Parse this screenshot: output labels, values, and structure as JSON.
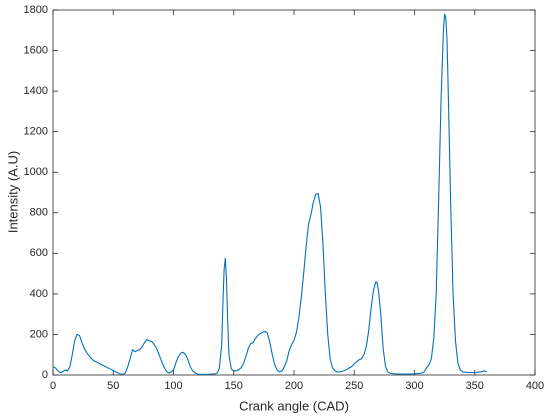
{
  "chart_data": {
    "type": "line",
    "xlabel": "Crank angle (CAD)",
    "ylabel": "Intensity (A.U)",
    "color": "#0072bd",
    "xlim": [
      0,
      400
    ],
    "xticks": [
      0,
      50,
      100,
      150,
      200,
      250,
      300,
      350,
      400
    ],
    "ylim": [
      0,
      1800
    ],
    "yticks": [
      0,
      200,
      400,
      600,
      800,
      1000,
      1200,
      1400,
      1600,
      1800
    ],
    "x": [
      0,
      2,
      4,
      6,
      8,
      10,
      12,
      14,
      16,
      18,
      20,
      22,
      24,
      26,
      28,
      30,
      32,
      34,
      36,
      38,
      40,
      42,
      44,
      46,
      48,
      50,
      52,
      54,
      56,
      58,
      60,
      62,
      64,
      66,
      68,
      70,
      72,
      74,
      76,
      78,
      80,
      82,
      84,
      86,
      88,
      90,
      92,
      94,
      96,
      98,
      100,
      102,
      104,
      106,
      108,
      110,
      112,
      114,
      116,
      118,
      120,
      122,
      124,
      126,
      128,
      130,
      132,
      134,
      136,
      138,
      140,
      141,
      142,
      143,
      144,
      145,
      146,
      148,
      150,
      152,
      154,
      156,
      158,
      160,
      162,
      164,
      166,
      168,
      170,
      172,
      174,
      176,
      178,
      180,
      182,
      184,
      186,
      188,
      190,
      192,
      194,
      196,
      198,
      200,
      202,
      204,
      206,
      208,
      210,
      212,
      214,
      216,
      218,
      220,
      222,
      224,
      226,
      228,
      230,
      232,
      234,
      236,
      238,
      240,
      242,
      244,
      246,
      248,
      250,
      252,
      254,
      256,
      258,
      260,
      262,
      264,
      266,
      268,
      269,
      270,
      272,
      274,
      276,
      278,
      280,
      285,
      290,
      295,
      300,
      305,
      308,
      310,
      312,
      314,
      316,
      318,
      320,
      322,
      324,
      325,
      326,
      327,
      328,
      330,
      332,
      334,
      336,
      338,
      340,
      345,
      350,
      355,
      358,
      360
    ],
    "values": [
      40,
      35,
      20,
      12,
      15,
      25,
      20,
      40,
      100,
      170,
      200,
      195,
      160,
      130,
      110,
      95,
      80,
      70,
      65,
      58,
      52,
      46,
      40,
      34,
      28,
      22,
      16,
      10,
      5,
      3,
      10,
      40,
      80,
      125,
      115,
      120,
      125,
      140,
      160,
      175,
      168,
      165,
      150,
      130,
      100,
      70,
      40,
      20,
      10,
      15,
      25,
      60,
      90,
      108,
      112,
      100,
      75,
      40,
      20,
      10,
      5,
      3,
      3,
      3,
      3,
      4,
      5,
      5,
      8,
      30,
      150,
      350,
      520,
      575,
      470,
      260,
      100,
      30,
      20,
      20,
      25,
      35,
      55,
      90,
      130,
      155,
      160,
      180,
      195,
      205,
      210,
      215,
      205,
      160,
      100,
      50,
      25,
      15,
      20,
      40,
      70,
      120,
      150,
      170,
      210,
      280,
      380,
      500,
      630,
      740,
      790,
      850,
      890,
      895,
      830,
      650,
      400,
      200,
      80,
      35,
      20,
      15,
      15,
      18,
      22,
      28,
      35,
      42,
      55,
      65,
      75,
      80,
      100,
      140,
      220,
      330,
      420,
      460,
      455,
      420,
      300,
      130,
      40,
      15,
      8,
      5,
      5,
      5,
      6,
      8,
      15,
      35,
      50,
      80,
      180,
      400,
      850,
      1350,
      1700,
      1780,
      1760,
      1650,
      1400,
      850,
      400,
      170,
      60,
      25,
      15,
      12,
      12,
      15,
      20,
      15
    ]
  }
}
